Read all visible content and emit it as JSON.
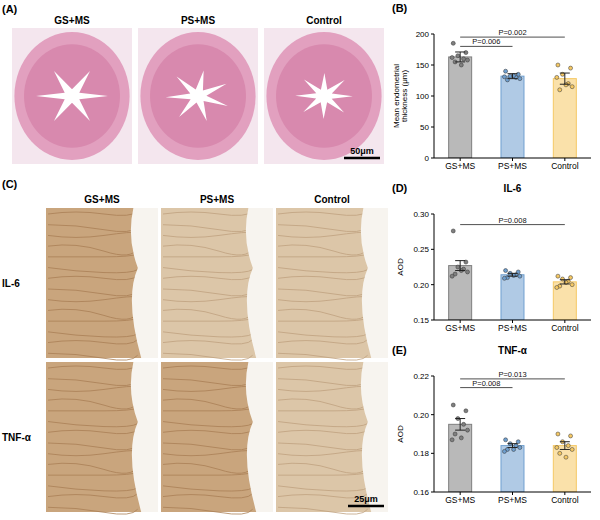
{
  "chart_data": [
    {
      "panel": "(B)",
      "type": "bar",
      "y_label": "Mean endometrial thickness (μm)",
      "categories": [
        "GS+MS",
        "PS+MS",
        "Control"
      ],
      "values": [
        163,
        132,
        128
      ],
      "error": [
        8,
        4,
        9
      ],
      "points": [
        [
          185,
          170,
          165,
          160,
          158,
          155,
          150,
          162
        ],
        [
          140,
          135,
          132,
          130,
          128,
          126,
          133,
          131
        ],
        [
          150,
          145,
          135,
          120,
          115,
          110,
          118,
          130
        ]
      ],
      "colors": [
        "#7f7f7f",
        "#6f9fcf",
        "#f5c864"
      ],
      "ylim": [
        0,
        200
      ],
      "yticks": [
        0,
        50,
        100,
        150,
        200
      ],
      "annotations": [
        {
          "text": "P=0.006",
          "from": "GS+MS",
          "to": "PS+MS"
        },
        {
          "text": "P=0.002",
          "from": "GS+MS",
          "to": "Control"
        }
      ]
    },
    {
      "panel": "(D)",
      "type": "bar",
      "title": "IL-6",
      "y_label": "AOD",
      "categories": [
        "GS+MS",
        "PS+MS",
        "Control"
      ],
      "values": [
        0.227,
        0.214,
        0.204
      ],
      "error": [
        0.007,
        0.002,
        0.003
      ],
      "points": [
        [
          0.276,
          0.232,
          0.225,
          0.222,
          0.218,
          0.215,
          0.22,
          0.212
        ],
        [
          0.22,
          0.218,
          0.216,
          0.214,
          0.212,
          0.21,
          0.213,
          0.209
        ],
        [
          0.212,
          0.21,
          0.208,
          0.205,
          0.2,
          0.198,
          0.203,
          0.196
        ]
      ],
      "colors": [
        "#7f7f7f",
        "#6f9fcf",
        "#f5c864"
      ],
      "ylim": [
        0.15,
        0.3
      ],
      "yticks": [
        0.15,
        {
          "value": 0.2,
          "label": "0.20"
        },
        0.25,
        {
          "value": 0.3,
          "label": "0.30"
        }
      ],
      "annotations": [
        {
          "text": "P=0.008",
          "from": "GS+MS",
          "to": "Control"
        }
      ]
    },
    {
      "panel": "(E)",
      "type": "bar",
      "title": "TNF-α",
      "y_label": "AOD",
      "categories": [
        "GS+MS",
        "PS+MS",
        "Control"
      ],
      "values": [
        0.195,
        0.184,
        0.184
      ],
      "error": [
        0.003,
        0.001,
        0.002
      ],
      "points": [
        [
          0.205,
          0.202,
          0.198,
          0.195,
          0.192,
          0.19,
          0.188,
          0.187
        ],
        [
          0.187,
          0.186,
          0.185,
          0.184,
          0.183,
          0.182,
          0.182,
          0.181
        ],
        [
          0.19,
          0.189,
          0.186,
          0.184,
          0.182,
          0.18,
          0.178,
          0.183
        ]
      ],
      "colors": [
        "#7f7f7f",
        "#6f9fcf",
        "#f5c864"
      ],
      "ylim": [
        0.16,
        0.22
      ],
      "yticks": [
        0.16,
        0.18,
        {
          "value": 0.2,
          "label": "0.20"
        },
        0.22
      ],
      "annotations": [
        {
          "text": "P=0.008",
          "from": "GS+MS",
          "to": "PS+MS"
        },
        {
          "text": "P=0.013",
          "from": "GS+MS",
          "to": "Control"
        }
      ]
    }
  ],
  "image_panels": [
    {
      "panel": "(A)",
      "columns": [
        "GS+MS",
        "PS+MS",
        "Control"
      ],
      "scale_bar": "50μm"
    },
    {
      "panel": "(C)",
      "columns": [
        "GS+MS",
        "PS+MS",
        "Control"
      ],
      "rows": [
        "IL-6",
        "TNF-α"
      ],
      "scale_bar": "25μm"
    }
  ]
}
